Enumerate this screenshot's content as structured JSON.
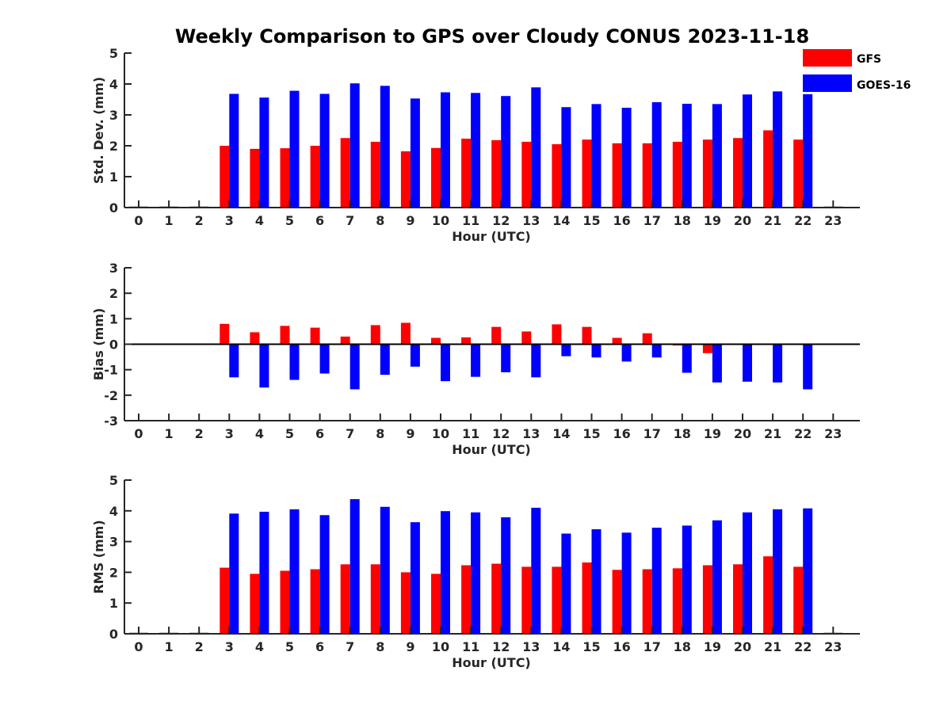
{
  "title": "Weekly Comparison to GPS over Cloudy CONUS 2023-11-18",
  "colors": {
    "GFS": "#ff0000",
    "GOES-16": "#0000ff"
  },
  "legend": {
    "position": "top-right",
    "entries": [
      {
        "name": "GFS",
        "color": "#ff0000"
      },
      {
        "name": "GOES-16",
        "color": "#0000ff"
      }
    ]
  },
  "chart_data": [
    {
      "type": "bar",
      "xlabel": "Hour (UTC)",
      "ylabel": "Std. Dev. (mm)",
      "ylim": [
        0,
        5
      ],
      "yticks": [
        0,
        1,
        2,
        3,
        4,
        5
      ],
      "xticks": [
        0,
        1,
        2,
        3,
        4,
        5,
        6,
        7,
        8,
        9,
        10,
        11,
        12,
        13,
        14,
        15,
        16,
        17,
        18,
        19,
        20,
        21,
        22,
        23
      ],
      "x": [
        3,
        4,
        5,
        6,
        7,
        8,
        9,
        10,
        11,
        12,
        13,
        14,
        15,
        16,
        17,
        18,
        19,
        20,
        21,
        22
      ],
      "series": [
        {
          "name": "GFS",
          "values": [
            2.0,
            1.9,
            1.92,
            2.0,
            2.25,
            2.13,
            1.82,
            1.93,
            2.23,
            2.18,
            2.13,
            2.05,
            2.2,
            2.08,
            2.08,
            2.13,
            2.2,
            2.25,
            2.5,
            2.2
          ]
        },
        {
          "name": "GOES-16",
          "values": [
            3.68,
            3.56,
            3.78,
            3.68,
            4.02,
            3.94,
            3.53,
            3.73,
            3.71,
            3.61,
            3.89,
            3.25,
            3.35,
            3.23,
            3.41,
            3.36,
            3.35,
            3.66,
            3.76,
            3.67
          ]
        }
      ]
    },
    {
      "type": "bar",
      "xlabel": "Hour (UTC)",
      "ylabel": "Bias (mm)",
      "ylim": [
        -3,
        3
      ],
      "yticks": [
        -3,
        -2,
        -1,
        0,
        1,
        2,
        3
      ],
      "xticks": [
        0,
        1,
        2,
        3,
        4,
        5,
        6,
        7,
        8,
        9,
        10,
        11,
        12,
        13,
        14,
        15,
        16,
        17,
        18,
        19,
        20,
        21,
        22,
        23
      ],
      "x": [
        3,
        4,
        5,
        6,
        7,
        8,
        9,
        10,
        11,
        12,
        13,
        14,
        15,
        16,
        17,
        18,
        19,
        20,
        21,
        22
      ],
      "series": [
        {
          "name": "GFS",
          "values": [
            0.8,
            0.47,
            0.72,
            0.65,
            0.3,
            0.75,
            0.84,
            0.25,
            0.27,
            0.68,
            0.5,
            0.78,
            0.68,
            0.25,
            0.43,
            -0.05,
            -0.35,
            0.0,
            0.02,
            0.02
          ]
        },
        {
          "name": "GOES-16",
          "values": [
            -1.3,
            -1.7,
            -1.4,
            -1.15,
            -1.77,
            -1.2,
            -0.88,
            -1.45,
            -1.28,
            -1.1,
            -1.3,
            -0.47,
            -0.52,
            -0.68,
            -0.52,
            -1.12,
            -1.5,
            -1.47,
            -1.5,
            -1.77
          ]
        }
      ]
    },
    {
      "type": "bar",
      "xlabel": "Hour (UTC)",
      "ylabel": "RMS (mm)",
      "ylim": [
        0,
        5
      ],
      "yticks": [
        0,
        1,
        2,
        3,
        4,
        5
      ],
      "xticks": [
        0,
        1,
        2,
        3,
        4,
        5,
        6,
        7,
        8,
        9,
        10,
        11,
        12,
        13,
        14,
        15,
        16,
        17,
        18,
        19,
        20,
        21,
        22,
        23
      ],
      "x": [
        3,
        4,
        5,
        6,
        7,
        8,
        9,
        10,
        11,
        12,
        13,
        14,
        15,
        16,
        17,
        18,
        19,
        20,
        21,
        22
      ],
      "series": [
        {
          "name": "GFS",
          "values": [
            2.15,
            1.95,
            2.05,
            2.1,
            2.26,
            2.26,
            2.0,
            1.95,
            2.23,
            2.28,
            2.18,
            2.18,
            2.32,
            2.08,
            2.1,
            2.13,
            2.23,
            2.26,
            2.52,
            2.18
          ]
        },
        {
          "name": "GOES-16",
          "values": [
            3.91,
            3.97,
            4.05,
            3.86,
            4.38,
            4.13,
            3.63,
            3.99,
            3.95,
            3.79,
            4.1,
            3.26,
            3.4,
            3.29,
            3.45,
            3.52,
            3.69,
            3.95,
            4.05,
            4.08
          ]
        }
      ]
    }
  ]
}
